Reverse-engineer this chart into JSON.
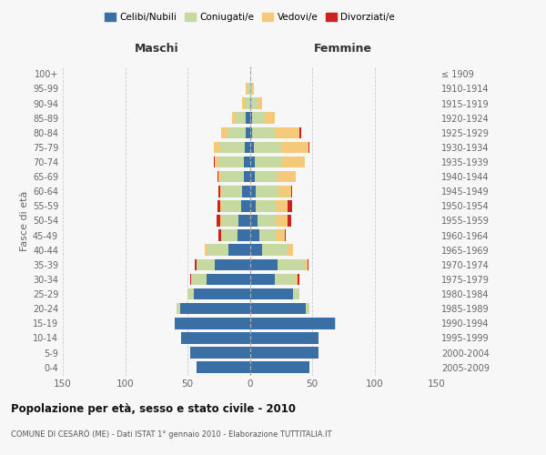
{
  "age_groups": [
    "0-4",
    "5-9",
    "10-14",
    "15-19",
    "20-24",
    "25-29",
    "30-34",
    "35-39",
    "40-44",
    "45-49",
    "50-54",
    "55-59",
    "60-64",
    "65-69",
    "70-74",
    "75-79",
    "80-84",
    "85-89",
    "90-94",
    "95-99",
    "100+"
  ],
  "birth_years": [
    "2005-2009",
    "2000-2004",
    "1995-1999",
    "1990-1994",
    "1985-1989",
    "1980-1984",
    "1975-1979",
    "1970-1974",
    "1965-1969",
    "1960-1964",
    "1955-1959",
    "1950-1954",
    "1945-1949",
    "1940-1944",
    "1935-1939",
    "1930-1934",
    "1925-1929",
    "1920-1924",
    "1915-1919",
    "1910-1914",
    "≤ 1909"
  ],
  "maschi": {
    "celibi": [
      43,
      48,
      55,
      60,
      56,
      45,
      35,
      28,
      17,
      10,
      9,
      7,
      6,
      5,
      5,
      4,
      3,
      3,
      0,
      0,
      0
    ],
    "coniugati": [
      0,
      0,
      0,
      0,
      3,
      5,
      12,
      15,
      17,
      13,
      14,
      16,
      17,
      18,
      20,
      20,
      15,
      8,
      4,
      2,
      0
    ],
    "vedovi": [
      0,
      0,
      0,
      0,
      0,
      0,
      0,
      0,
      2,
      0,
      1,
      1,
      1,
      2,
      3,
      5,
      5,
      3,
      2,
      1,
      0
    ],
    "divorziati": [
      0,
      0,
      0,
      0,
      0,
      0,
      1,
      1,
      0,
      2,
      3,
      2,
      1,
      1,
      1,
      0,
      0,
      0,
      0,
      0,
      0
    ]
  },
  "femmine": {
    "nubili": [
      48,
      55,
      55,
      68,
      45,
      35,
      20,
      22,
      10,
      8,
      6,
      5,
      5,
      4,
      4,
      3,
      2,
      2,
      1,
      0,
      0
    ],
    "coniugate": [
      0,
      0,
      0,
      1,
      3,
      5,
      17,
      22,
      20,
      13,
      15,
      16,
      18,
      18,
      22,
      22,
      18,
      10,
      5,
      2,
      0
    ],
    "vedove": [
      0,
      0,
      0,
      0,
      0,
      0,
      1,
      2,
      5,
      7,
      9,
      9,
      10,
      15,
      18,
      22,
      20,
      8,
      4,
      1,
      0
    ],
    "divorziate": [
      0,
      0,
      0,
      0,
      0,
      0,
      2,
      1,
      0,
      1,
      3,
      4,
      1,
      0,
      0,
      1,
      1,
      0,
      0,
      0,
      0
    ]
  },
  "colors": {
    "celibi": "#3a6fa5",
    "coniugati": "#c5d9a0",
    "vedovi": "#f5c97a",
    "divorziati": "#cc2222"
  },
  "xlim": 150,
  "title": "Popolazione per età, sesso e stato civile - 2010",
  "subtitle": "COMUNE DI CESARÒ (ME) - Dati ISTAT 1° gennaio 2010 - Elaborazione TUTTITALIA.IT",
  "ylabel_left": "Fasce di età",
  "xlabel_maschi": "Maschi",
  "xlabel_femmine": "Femmine",
  "legend_labels": [
    "Celibi/Nubili",
    "Coniugati/e",
    "Vedovi/e",
    "Divorziati/e"
  ],
  "bg_color": "#f7f7f7",
  "grid_color": "#cccccc",
  "text_color": "#666666"
}
